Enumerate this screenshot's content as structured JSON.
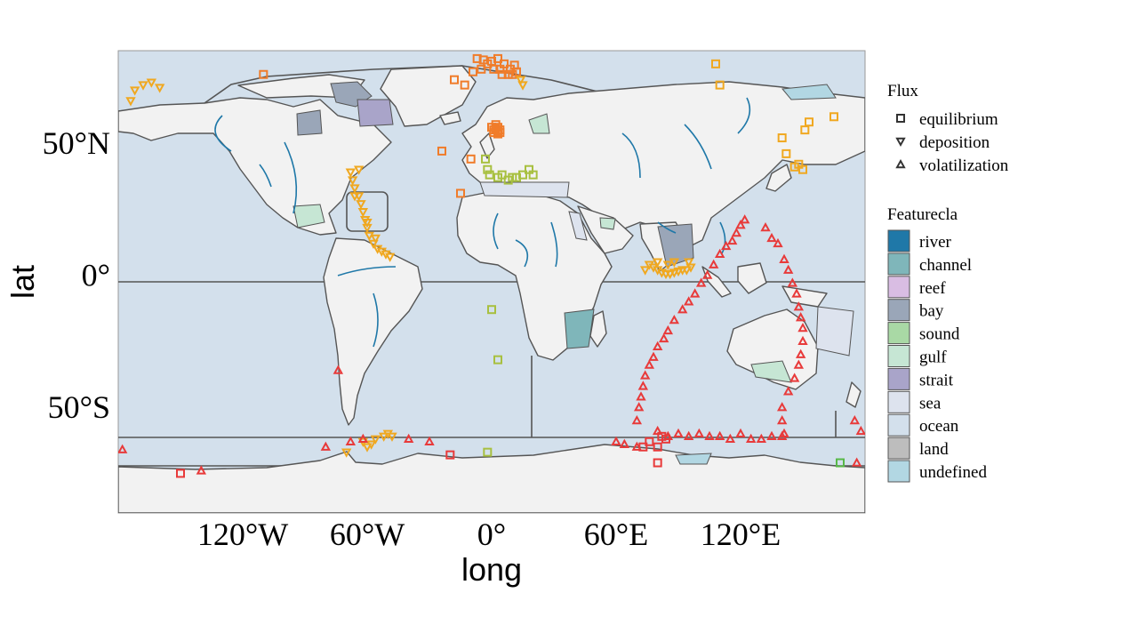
{
  "chart_data": {
    "type": "scatter",
    "xlabel": "long",
    "ylabel": "lat",
    "xlim": [
      -180,
      180
    ],
    "ylim": [
      -90,
      85
    ],
    "x_ticks": [
      {
        "value": -120,
        "label": "120°W"
      },
      {
        "value": -60,
        "label": "60°W"
      },
      {
        "value": 0,
        "label": "0°"
      },
      {
        "value": 60,
        "label": "60°E"
      },
      {
        "value": 120,
        "label": "120°E"
      }
    ],
    "y_ticks": [
      {
        "value": 50,
        "label": "50°N"
      },
      {
        "value": 0,
        "label": "0°"
      },
      {
        "value": -50,
        "label": "50°S"
      }
    ],
    "flux_legend": {
      "title": "Flux",
      "items": [
        {
          "label": "equilibrium",
          "shape": "square"
        },
        {
          "label": "deposition",
          "shape": "triangle-down"
        },
        {
          "label": "volatilization",
          "shape": "triangle-up"
        }
      ]
    },
    "featurecla_legend": {
      "title": "Featurecla",
      "items": [
        {
          "label": "river",
          "color": "#1f78a8"
        },
        {
          "label": "channel",
          "color": "#7fb6ba"
        },
        {
          "label": "reef",
          "color": "#d9bde3"
        },
        {
          "label": "bay",
          "color": "#9aa6b8"
        },
        {
          "label": "sound",
          "color": "#a9d9a5"
        },
        {
          "label": "gulf",
          "color": "#c6e6d4"
        },
        {
          "label": "strait",
          "color": "#a9a4c9"
        },
        {
          "label": "sea",
          "color": "#dde3ee"
        },
        {
          "label": "ocean",
          "color": "#d3e0ec"
        },
        {
          "label": "land",
          "color": "#bdbdbd"
        },
        {
          "label": "undefined",
          "color": "#b2d7e3"
        }
      ]
    },
    "colors": {
      "land_fill": "#f2f2f2",
      "coast_line": "#555555",
      "river": "#1f78a8",
      "equilibrium_marker": "#f07c2a",
      "deposition_marker": "#f0a820",
      "volatilization_marker": "#e83a3a",
      "olive_marker": "#a8c040"
    },
    "series": [
      {
        "name": "equilibrium",
        "points": [
          [
            -7,
            82
          ],
          [
            -4,
            81.5
          ],
          [
            0,
            81
          ],
          [
            3,
            82
          ],
          [
            -2,
            80
          ],
          [
            6,
            80
          ],
          [
            -5,
            78
          ],
          [
            1,
            78
          ],
          [
            4,
            78
          ],
          [
            9,
            78
          ],
          [
            11,
            79.5
          ],
          [
            12,
            77
          ],
          [
            5,
            76
          ],
          [
            8,
            76
          ],
          [
            -9,
            77
          ],
          [
            10,
            76
          ],
          [
            0,
            56
          ],
          [
            2,
            55.5
          ],
          [
            3,
            54.5
          ],
          [
            4,
            55
          ],
          [
            1,
            54
          ],
          [
            3,
            56
          ],
          [
            2,
            57
          ],
          [
            3,
            53.5
          ],
          [
            4,
            54
          ],
          [
            1,
            55
          ],
          [
            -3,
            44
          ],
          [
            -10,
            44
          ],
          [
            -2,
            40
          ],
          [
            -1,
            38
          ],
          [
            3,
            37
          ],
          [
            5,
            38
          ],
          [
            8,
            36
          ],
          [
            10,
            37
          ],
          [
            12,
            37
          ],
          [
            15,
            38
          ],
          [
            18,
            40
          ],
          [
            20,
            38
          ],
          [
            0,
            -13
          ],
          [
            3,
            -32
          ],
          [
            -15,
            31
          ],
          [
            -18,
            74
          ],
          [
            -13,
            72
          ],
          [
            -24,
            47
          ],
          [
            108,
            80
          ],
          [
            110,
            72
          ],
          [
            140,
            52
          ],
          [
            142,
            46
          ],
          [
            151,
            55
          ],
          [
            153,
            58
          ],
          [
            165,
            60
          ],
          [
            148,
            42
          ],
          [
            146,
            41
          ],
          [
            150,
            40
          ],
          [
            -110,
            76
          ],
          [
            -150,
            -75
          ],
          [
            -20,
            -68
          ],
          [
            -2,
            -67
          ],
          [
            82,
            -61
          ],
          [
            84,
            -62
          ],
          [
            80,
            -65
          ],
          [
            76,
            -63
          ],
          [
            73,
            -65
          ],
          [
            80,
            -71
          ],
          [
            168,
            -71
          ]
        ]
      },
      {
        "name": "deposition",
        "points": [
          [
            -172,
            70
          ],
          [
            -168,
            72
          ],
          [
            -164,
            73
          ],
          [
            -160,
            71
          ],
          [
            -174,
            66
          ],
          [
            -68,
            39
          ],
          [
            -67,
            36
          ],
          [
            -66,
            33
          ],
          [
            -64,
            30
          ],
          [
            -63,
            27
          ],
          [
            -62,
            24
          ],
          [
            -61,
            21
          ],
          [
            -60,
            18
          ],
          [
            -59,
            15
          ],
          [
            -57,
            12
          ],
          [
            -55,
            10
          ],
          [
            -53,
            9
          ],
          [
            -51,
            8
          ],
          [
            -49,
            7
          ],
          [
            -64,
            40
          ],
          [
            -66,
            30
          ],
          [
            -60,
            20
          ],
          [
            -56,
            14
          ],
          [
            76,
            4
          ],
          [
            78,
            3
          ],
          [
            80,
            2
          ],
          [
            82,
            1
          ],
          [
            84,
            0.5
          ],
          [
            86,
            0.5
          ],
          [
            88,
            1
          ],
          [
            90,
            1.5
          ],
          [
            92,
            2
          ],
          [
            94,
            2
          ],
          [
            96,
            3
          ],
          [
            80,
            5
          ],
          [
            88,
            5
          ],
          [
            95,
            5
          ],
          [
            74,
            2
          ],
          [
            85,
            4
          ],
          [
            15,
            72
          ],
          [
            14,
            74
          ],
          [
            -62,
            -63
          ],
          [
            -58,
            -64
          ],
          [
            -56,
            -62
          ],
          [
            -52,
            -61
          ],
          [
            -50,
            -60
          ],
          [
            -48,
            -61
          ],
          [
            -60,
            -65
          ],
          [
            -70,
            -67
          ]
        ]
      },
      {
        "name": "volatilization",
        "points": [
          [
            -178,
            -66
          ],
          [
            -140,
            -74
          ],
          [
            -80,
            -65
          ],
          [
            -68,
            -63
          ],
          [
            -62,
            -62
          ],
          [
            -40,
            -62
          ],
          [
            -30,
            -63
          ],
          [
            60,
            -63
          ],
          [
            64,
            -64
          ],
          [
            70,
            -65
          ],
          [
            70,
            -55
          ],
          [
            71,
            -50
          ],
          [
            72,
            -46
          ],
          [
            73,
            -42
          ],
          [
            74,
            -38
          ],
          [
            76,
            -34
          ],
          [
            78,
            -31
          ],
          [
            80,
            -27
          ],
          [
            83,
            -24
          ],
          [
            85,
            -21
          ],
          [
            88,
            -17
          ],
          [
            92,
            -13
          ],
          [
            95,
            -10
          ],
          [
            98,
            -7
          ],
          [
            101,
            -3
          ],
          [
            104,
            0
          ],
          [
            107,
            4
          ],
          [
            110,
            8
          ],
          [
            113,
            11
          ],
          [
            116,
            13
          ],
          [
            118,
            16
          ],
          [
            120,
            19
          ],
          [
            122,
            21
          ],
          [
            132,
            18
          ],
          [
            135,
            14
          ],
          [
            138,
            12
          ],
          [
            141,
            6
          ],
          [
            143,
            2
          ],
          [
            145,
            -3
          ],
          [
            147,
            -7
          ],
          [
            148,
            -12
          ],
          [
            149,
            -16
          ],
          [
            150,
            -20
          ],
          [
            150,
            -25
          ],
          [
            149,
            -30
          ],
          [
            148,
            -34
          ],
          [
            146,
            -39
          ],
          [
            143,
            -44
          ],
          [
            140,
            -50
          ],
          [
            140,
            -55
          ],
          [
            141,
            -60
          ],
          [
            80,
            -59
          ],
          [
            85,
            -61
          ],
          [
            90,
            -60
          ],
          [
            95,
            -61
          ],
          [
            100,
            -60
          ],
          [
            105,
            -61
          ],
          [
            110,
            -61
          ],
          [
            115,
            -62
          ],
          [
            120,
            -60
          ],
          [
            125,
            -62
          ],
          [
            130,
            -62
          ],
          [
            135,
            -61
          ],
          [
            140,
            -61
          ],
          [
            175,
            -55
          ],
          [
            178,
            -59
          ],
          [
            176,
            -71
          ],
          [
            -74,
            -36
          ]
        ]
      }
    ]
  }
}
